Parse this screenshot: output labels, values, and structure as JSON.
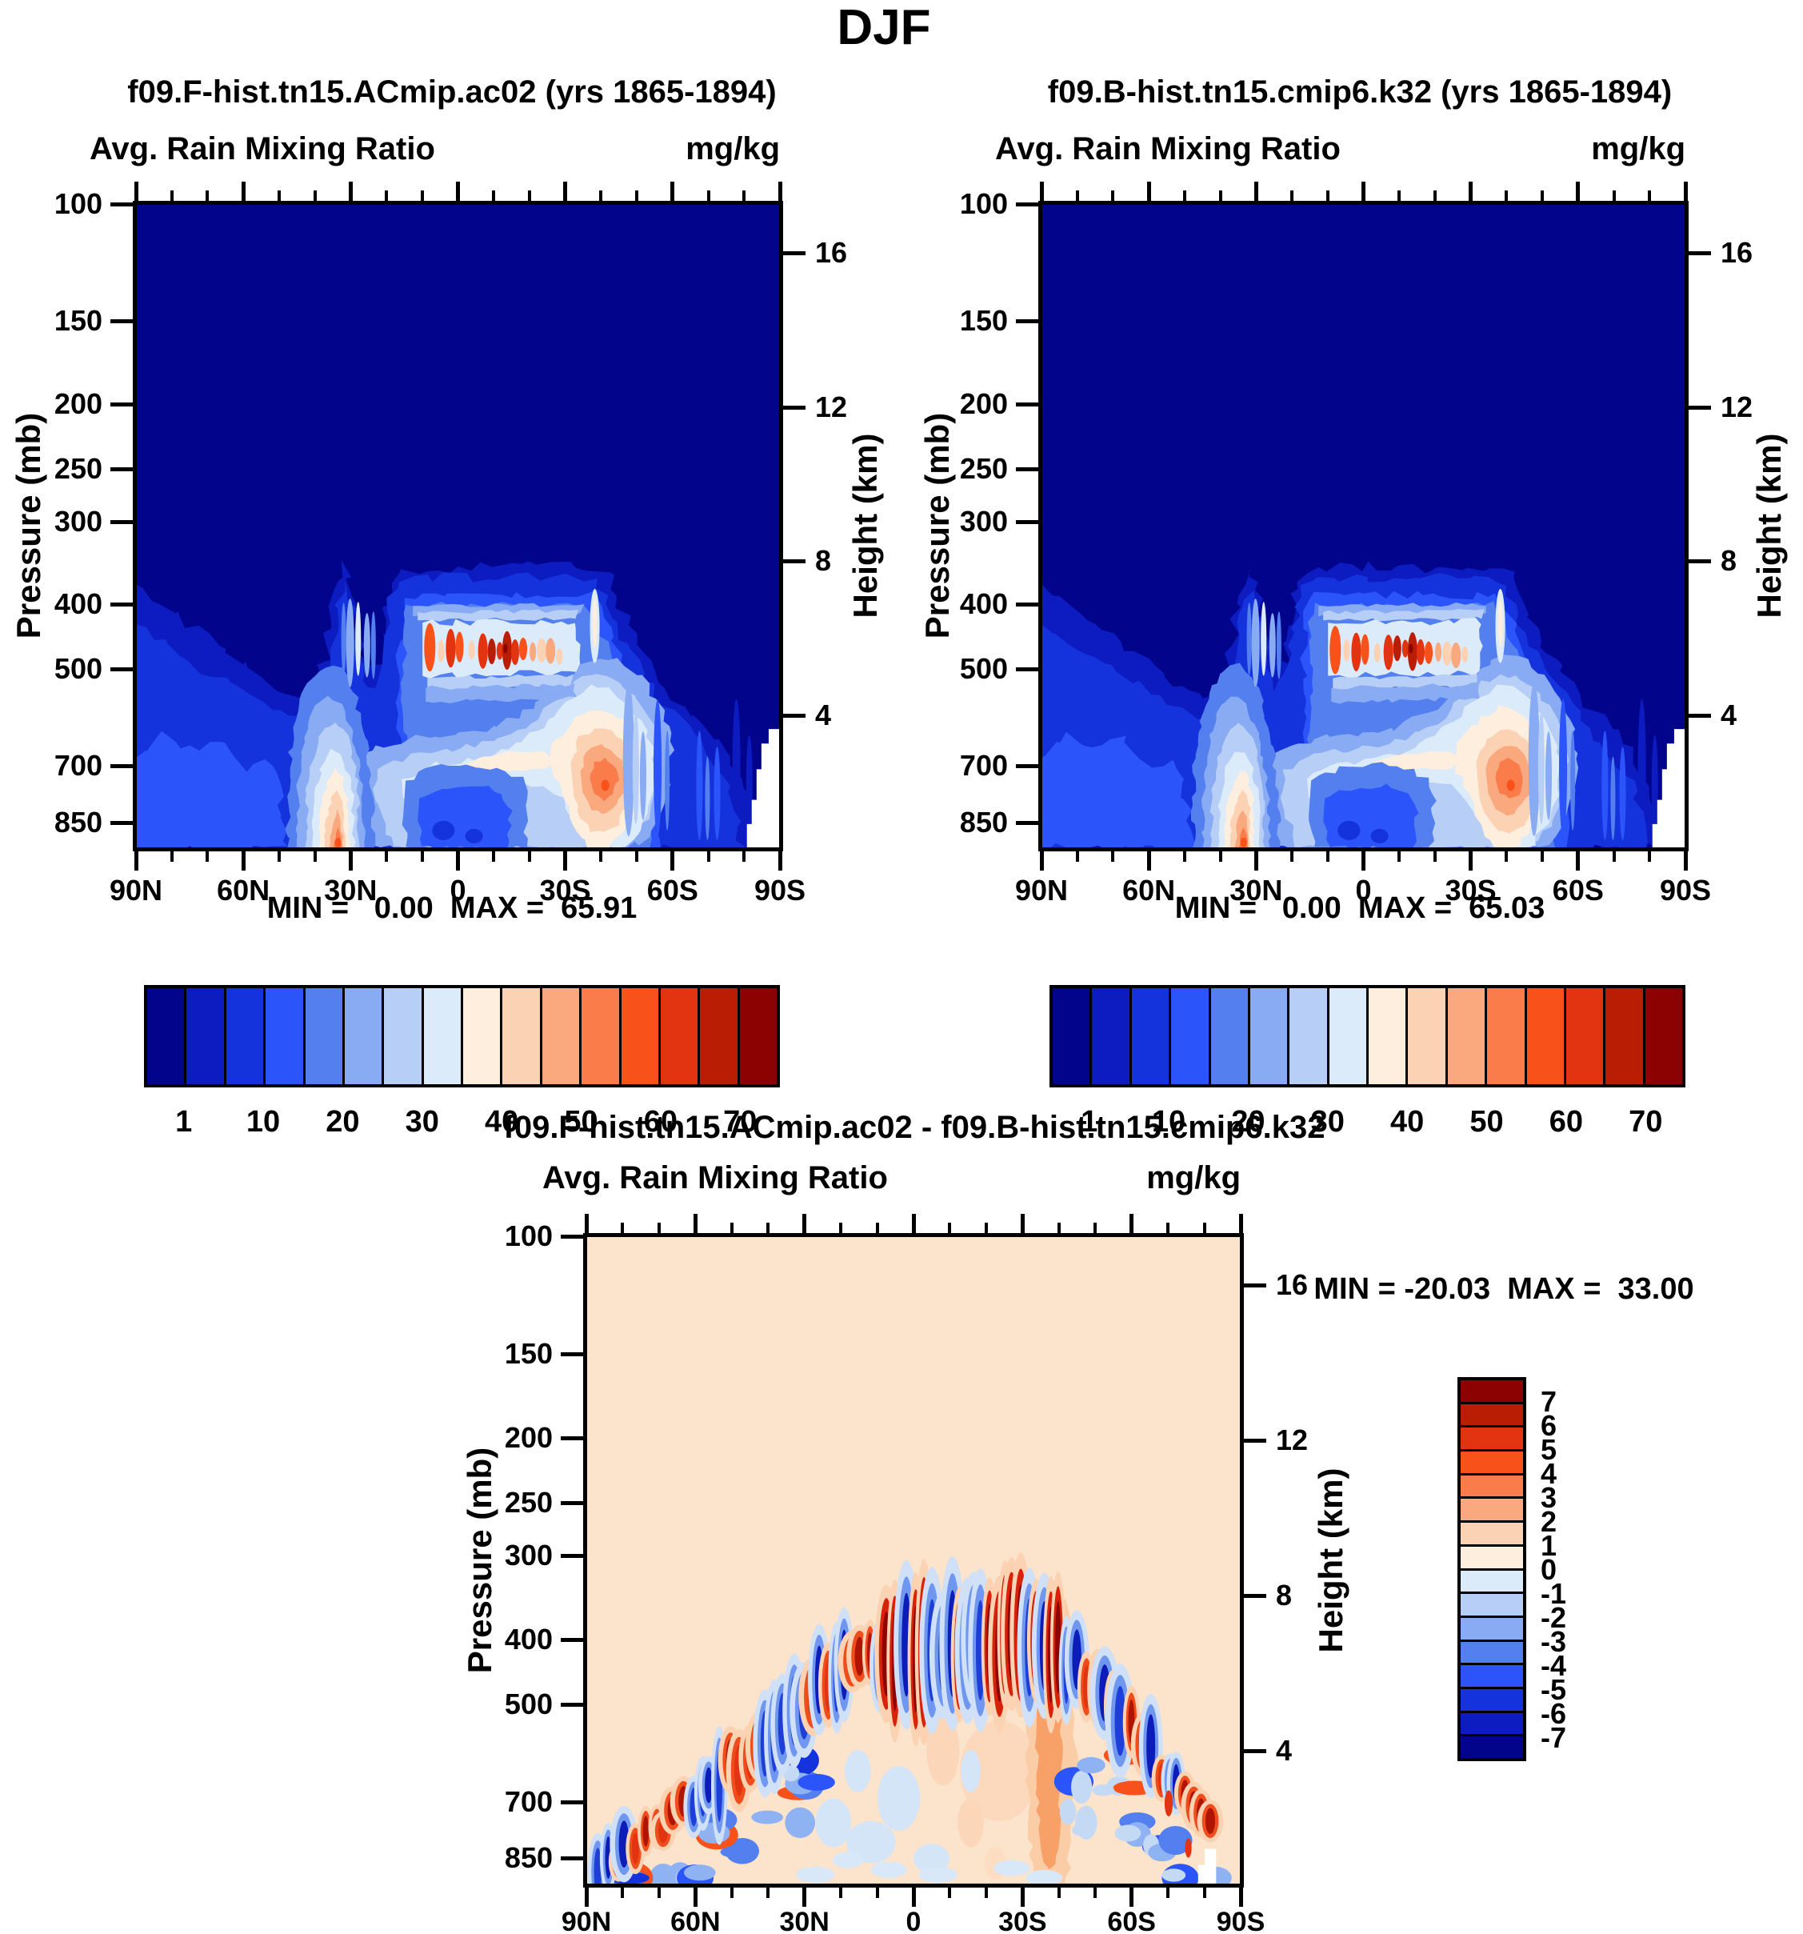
{
  "page": {
    "title": "DJF"
  },
  "panels": [
    {
      "id": "A",
      "title": "f09.F-hist.tn15.ACmip.ac02 (yrs 1865-1894)",
      "subtitle": "Avg. Rain Mixing Ratio",
      "units": "mg/kg",
      "minmax": "MIN =   0.00  MAX =  65.91"
    },
    {
      "id": "B",
      "title": "f09.B-hist.tn15.cmip6.k32 (yrs 1865-1894)",
      "subtitle": "Avg. Rain Mixing Ratio",
      "units": "mg/kg",
      "minmax": "MIN =   0.00  MAX =  65.03"
    },
    {
      "id": "C",
      "title": "f09.F-hist.tn15.ACmip.ac02 - f09.B-hist.tn15.cmip6.k32",
      "subtitle": "Avg. Rain Mixing Ratio",
      "units": "mg/kg",
      "minmax": "MIN = -20.03  MAX =  33.00"
    }
  ],
  "axes": {
    "pressure_label": "Pressure (mb)",
    "height_label": "Height (km)",
    "pressure_ticks": [
      "100",
      "150",
      "200",
      "250",
      "300",
      "400",
      "500",
      "700",
      "850"
    ],
    "height_ticks": [
      "16",
      "12",
      "8",
      "4"
    ],
    "lat_labels": [
      "90N",
      "60N",
      "30N",
      "0",
      "30S",
      "60S",
      "90S"
    ]
  },
  "colorbar": {
    "labels": [
      "1",
      "10",
      "20",
      "30",
      "40",
      "50",
      "60",
      "70"
    ],
    "palette": [
      "#02058c",
      "#0d1cc0",
      "#1533dd",
      "#2b55fa",
      "#5480ef",
      "#88abf3",
      "#b7cff6",
      "#dcebfa",
      "#fdeedd",
      "#fcd2b4",
      "#faa87e",
      "#f97c4a",
      "#f8521a",
      "#e23410",
      "#b91e04",
      "#8c0101"
    ]
  },
  "diff_colorbar": {
    "labels": [
      "7",
      "6",
      "5",
      "4",
      "3",
      "2",
      "1",
      "0",
      "-1",
      "-2",
      "-3",
      "-4",
      "-5",
      "-6",
      "-7"
    ],
    "background": "#fbe3cc"
  },
  "chart_data": [
    {
      "type": "heatmap",
      "subtype": "filled-contour latitude-pressure section",
      "season": "DJF",
      "title": "f09.F-hist.tn15.ACmip.ac02 (yrs 1865-1894)",
      "field": "Avg. Rain Mixing Ratio",
      "units": "mg/kg",
      "x_ticks": [
        "90N",
        "60N",
        "30N",
        "0",
        "30S",
        "60S",
        "90S"
      ],
      "x_minor_tick_deg": 10,
      "y_left_label": "Pressure (mb)",
      "y_left_ticks": [
        100,
        150,
        200,
        250,
        300,
        400,
        500,
        700,
        850
      ],
      "y_left_scale": "log-pressure, 100 mb top to ~930 mb bottom",
      "y_right_label": "Height (km)",
      "y_right_ticks": [
        16,
        12,
        8,
        4
      ],
      "contour_levels": [
        1,
        5,
        10,
        15,
        20,
        25,
        30,
        35,
        40,
        45,
        50,
        55,
        60,
        65,
        70
      ],
      "colorbar_labels": [
        1,
        10,
        20,
        30,
        40,
        50,
        60,
        70
      ],
      "min": 0.0,
      "max": 65.91,
      "legend_position": "horizontal colorbar below panel",
      "features": [
        "values < 1 mg/kg (dark navy) everywhere above ~350 mb",
        "elevated anvil plateau of 1-30 mg/kg between ~15N and ~40S topped near 8 km",
        "row of 40-70 mg/kg maxima near 450 mb between the equator and ~30S",
        "surface maximum ~50-65 mg/kg near 35N at 850-900 mb",
        "secondary maximum ~40-50 mg/kg near 40S at ~700 mb",
        "white (no data, topography) wedge near the South Pole below ~600 mb"
      ]
    },
    {
      "type": "heatmap",
      "subtype": "filled-contour latitude-pressure section",
      "season": "DJF",
      "title": "f09.B-hist.tn15.cmip6.k32 (yrs 1865-1894)",
      "field": "Avg. Rain Mixing Ratio",
      "units": "mg/kg",
      "x_ticks": [
        "90N",
        "60N",
        "30N",
        "0",
        "30S",
        "60S",
        "90S"
      ],
      "y_left_label": "Pressure (mb)",
      "y_left_ticks": [
        100,
        150,
        200,
        250,
        300,
        400,
        500,
        700,
        850
      ],
      "y_right_label": "Height (km)",
      "y_right_ticks": [
        16,
        12,
        8,
        4
      ],
      "contour_levels": [
        1,
        5,
        10,
        15,
        20,
        25,
        30,
        35,
        40,
        45,
        50,
        55,
        60,
        65,
        70
      ],
      "colorbar_labels": [
        1,
        10,
        20,
        30,
        40,
        50,
        60,
        70
      ],
      "min": 0.0,
      "max": 65.03,
      "features": [
        "field nearly identical to panel 1"
      ]
    },
    {
      "type": "heatmap",
      "subtype": "difference (panel1 - panel2) latitude-pressure section",
      "title": "f09.F-hist.tn15.ACmip.ac02 - f09.B-hist.tn15.cmip6.k32",
      "field": "Avg. Rain Mixing Ratio",
      "units": "mg/kg",
      "x_ticks": [
        "90N",
        "60N",
        "30N",
        "0",
        "30S",
        "60S",
        "90S"
      ],
      "y_left_label": "Pressure (mb)",
      "y_left_ticks": [
        100,
        150,
        200,
        250,
        300,
        400,
        500,
        700,
        850
      ],
      "y_right_label": "Height (km)",
      "y_right_ticks": [
        16,
        12,
        8,
        4
      ],
      "contour_levels": [
        -7,
        -6,
        -5,
        -4,
        -3,
        -2,
        -1,
        0,
        1,
        2,
        3,
        4,
        5,
        6,
        7
      ],
      "colorbar_labels": [
        7,
        6,
        5,
        4,
        3,
        2,
        1,
        0,
        -1,
        -2,
        -3,
        -4,
        -5,
        -6,
        -7
      ],
      "min": -20.03,
      "max": 33.0,
      "legend_position": "vertical colorbar right of panel",
      "features": [
        "near-zero (0 to +1, cream) everywhere above the rain layer",
        "arch of alternating positive/negative vertical streaks following the rain-top from ~850 mb at high latitudes up to ~450 mb in the tropics",
        "strongest positive differences (> +7) near 420-500 mb between the equator and 30S",
        "broad weak positive plume below ~500 mb near 25S",
        "mottled weak negative patches below 600 mb poleward of 40 in both hemispheres"
      ]
    }
  ]
}
